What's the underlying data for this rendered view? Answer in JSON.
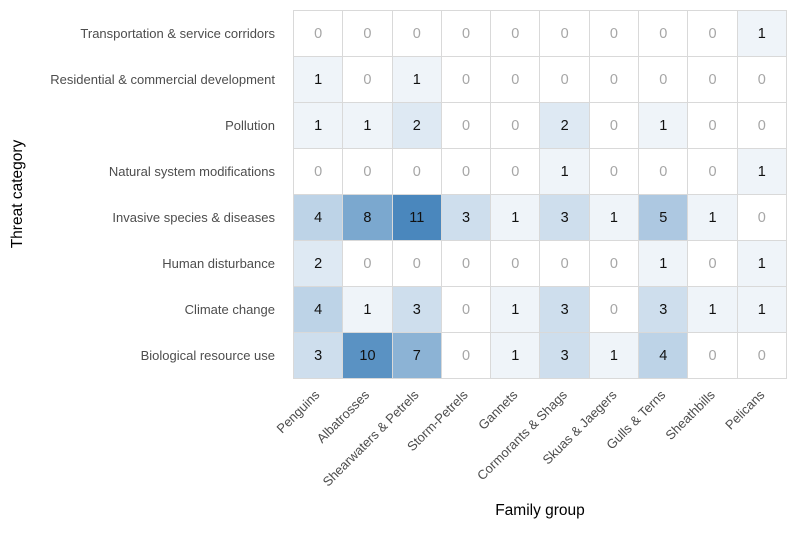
{
  "chart_data": {
    "type": "heatmap",
    "title": "",
    "xlabel": "Family group",
    "ylabel": "Threat category",
    "columns": [
      "Penguins",
      "Albatrosses",
      "Shearwaters & Petrels",
      "Storm-Petrels",
      "Gannets",
      "Cormorants & Shags",
      "Skuas & Jaegers",
      "Gulls & Terns",
      "Sheathbills",
      "Pelicans"
    ],
    "rows": [
      "Transportation & service corridors",
      "Residential & commercial development",
      "Pollution",
      "Natural system modifications",
      "Invasive species & diseases",
      "Human disturbance",
      "Climate change",
      "Biological resource use"
    ],
    "values": [
      [
        0,
        0,
        0,
        0,
        0,
        0,
        0,
        0,
        0,
        1
      ],
      [
        1,
        0,
        1,
        0,
        0,
        0,
        0,
        0,
        0,
        0
      ],
      [
        1,
        1,
        2,
        0,
        0,
        2,
        0,
        1,
        0,
        0
      ],
      [
        0,
        0,
        0,
        0,
        0,
        1,
        0,
        0,
        0,
        1
      ],
      [
        4,
        8,
        11,
        3,
        1,
        3,
        1,
        5,
        1,
        0
      ],
      [
        2,
        0,
        0,
        0,
        0,
        0,
        0,
        1,
        0,
        1
      ],
      [
        4,
        1,
        3,
        0,
        1,
        3,
        0,
        3,
        1,
        1
      ],
      [
        3,
        10,
        7,
        0,
        1,
        3,
        1,
        4,
        0,
        0
      ]
    ],
    "color_scale": {
      "min_value": 0,
      "max_value": 11,
      "min_color": "#ffffff",
      "max_color": "#4a87bd"
    },
    "grid_line_color": "#d9d9d9",
    "zero_text_color": "#a6a6a6",
    "value_text_color": "#111111",
    "axis_text_color": "#4d4d4d",
    "legend_position": "none",
    "grid_on": true
  }
}
